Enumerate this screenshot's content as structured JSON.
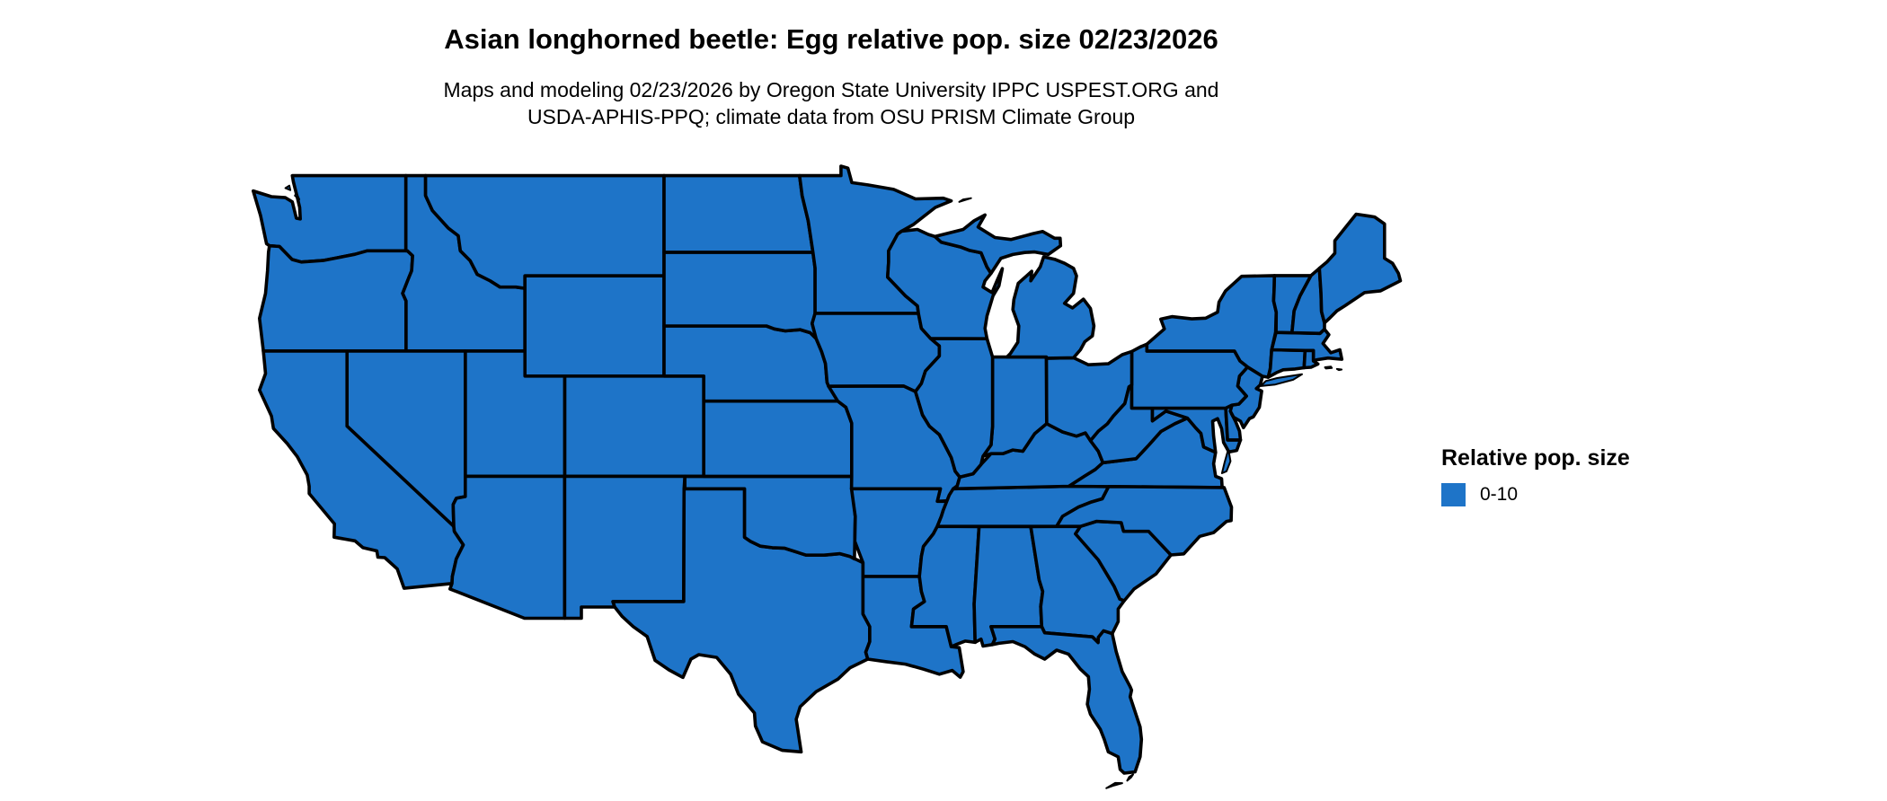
{
  "title": "Asian longhorned beetle: Egg relative pop. size 02/23/2026",
  "subtitle_line1": "Maps and modeling 02/23/2026 by Oregon State University IPPC USPEST.ORG and",
  "subtitle_line2": "USDA-APHIS-PPQ; climate data from OSU PRISM Climate Group",
  "legend": {
    "title": "Relative pop. size",
    "items": [
      {
        "label": "0-10",
        "color": "#1E74C8"
      }
    ]
  },
  "map": {
    "region": "Contiguous United States",
    "fill_color": "#1E74C8",
    "border_color": "#000000",
    "background_color": "#FFFFFF"
  },
  "chart_data": {
    "type": "choropleth_map",
    "region": "Contiguous United States",
    "legend_title": "Relative pop. size",
    "classes": [
      {
        "label": "0-10",
        "color": "#1E74C8"
      }
    ],
    "note": "All states rendered in the single class 0-10"
  }
}
